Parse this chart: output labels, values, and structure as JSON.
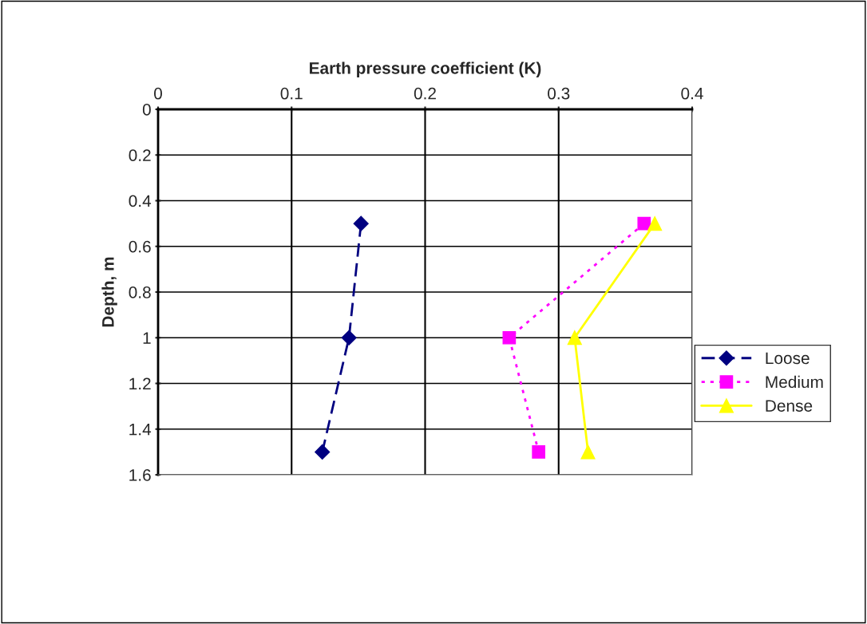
{
  "chart_data": {
    "type": "line",
    "xlabel": "Earth pressure coefficient (K)",
    "ylabel": "Depth, m",
    "xlim": [
      0,
      0.4
    ],
    "xticks": [
      0,
      0.1,
      0.2,
      0.3,
      0.4
    ],
    "ylim": [
      1.6,
      0
    ],
    "yticks": [
      0,
      0.2,
      0.4,
      0.6,
      0.8,
      1,
      1.2,
      1.4,
      1.6
    ],
    "grid": true,
    "legend": "right",
    "series": [
      {
        "name": "Loose",
        "color": "#000080",
        "marker": "diamond",
        "line_style": "dashed",
        "x": [
          0.152,
          0.143,
          0.123
        ],
        "values": [
          0.5,
          1,
          1.5
        ]
      },
      {
        "name": "Medium",
        "color": "#ff00ff",
        "marker": "square",
        "line_style": "dotted",
        "x": [
          0.364,
          0.263,
          0.285
        ],
        "values": [
          0.5,
          1,
          1.5
        ]
      },
      {
        "name": "Dense",
        "color": "#ffff00",
        "marker": "triangle",
        "line_style": "solid",
        "x": [
          0.372,
          0.312,
          0.322
        ],
        "values": [
          0.5,
          1,
          1.5
        ]
      }
    ]
  }
}
